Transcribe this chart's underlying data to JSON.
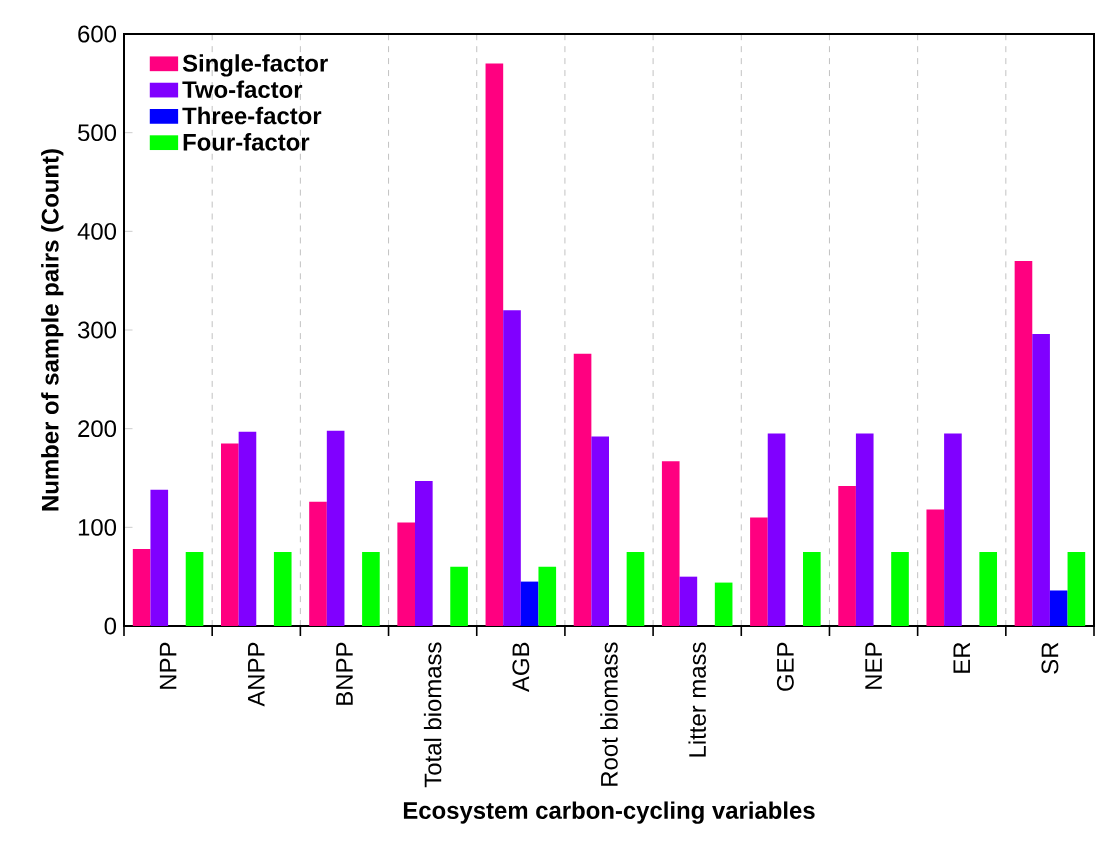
{
  "chart_data": {
    "type": "bar",
    "xlabel": "Ecosystem carbon-cycling variables",
    "ylabel": "Number of sample pairs (Count)",
    "categories": [
      "NPP",
      "ANPP",
      "BNPP",
      "Total biomass",
      "AGB",
      "Root biomass",
      "Litter mass",
      "GEP",
      "NEP",
      "ER",
      "SR"
    ],
    "series": [
      {
        "name": "Single-factor",
        "color": "#ff0080",
        "values": [
          78,
          185,
          126,
          105,
          570,
          276,
          167,
          110,
          142,
          118,
          370
        ]
      },
      {
        "name": "Two-factor",
        "color": "#8000ff",
        "values": [
          138,
          197,
          198,
          147,
          320,
          192,
          50,
          195,
          195,
          195,
          296
        ]
      },
      {
        "name": "Three-factor",
        "color": "#0000ff",
        "values": [
          null,
          null,
          null,
          null,
          45,
          null,
          null,
          null,
          null,
          null,
          36
        ]
      },
      {
        "name": "Four-factor",
        "color": "#00ff00",
        "values": [
          75,
          75,
          75,
          60,
          60,
          75,
          44,
          75,
          75,
          75,
          75
        ]
      }
    ],
    "ylim": [
      0,
      600
    ],
    "yticks": [
      0,
      100,
      200,
      300,
      400,
      500,
      600
    ],
    "grid": "x",
    "legend": "top left"
  }
}
